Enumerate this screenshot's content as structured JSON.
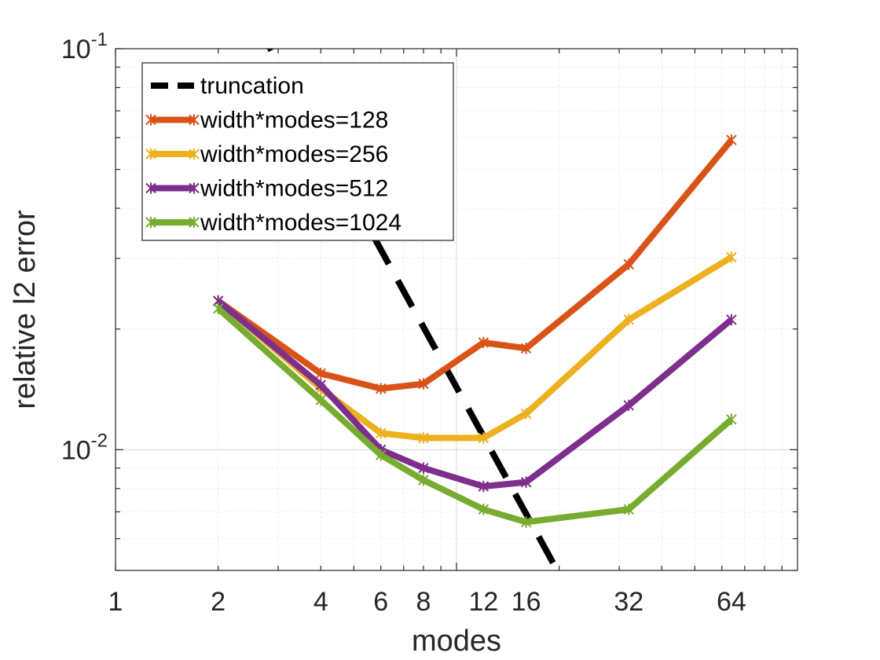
{
  "chart_data": {
    "type": "line",
    "xscale": "log",
    "yscale": "log",
    "xlabel": "modes",
    "ylabel": "relative l2 error",
    "xlim": [
      1,
      100
    ],
    "ylim": [
      0.005,
      0.1
    ],
    "grid": true,
    "x_ticks": [
      1,
      2,
      4,
      6,
      8,
      12,
      16,
      32,
      64
    ],
    "x_tick_labels": [
      "1",
      "2",
      "4",
      "6",
      "8",
      "12",
      "16",
      "32",
      "64"
    ],
    "y_tick_labels": [
      {
        "value": 0.1,
        "base": "10",
        "exp": "-1"
      },
      {
        "value": 0.01,
        "base": "10",
        "exp": "-2"
      }
    ],
    "legend_position": "top-left",
    "series": [
      {
        "name": "truncation",
        "color": "#000000",
        "style": "dashed",
        "marker": "none",
        "x": [
          2.6,
          20
        ],
        "y": [
          0.115,
          0.0049
        ]
      },
      {
        "name": "width*modes=128",
        "color": "#D95319",
        "style": "solid",
        "marker": "x",
        "x": [
          2,
          4,
          6,
          8,
          12,
          16,
          32,
          64
        ],
        "y": [
          0.0235,
          0.0155,
          0.0142,
          0.0146,
          0.0185,
          0.0179,
          0.029,
          0.0592
        ]
      },
      {
        "name": "width*modes=256",
        "color": "#EDB120",
        "style": "solid",
        "marker": "x",
        "x": [
          2,
          4,
          6,
          8,
          12,
          16,
          32,
          64
        ],
        "y": [
          0.0235,
          0.0142,
          0.011,
          0.0107,
          0.0107,
          0.0123,
          0.0211,
          0.0302
        ]
      },
      {
        "name": "width*modes=512",
        "color": "#7E2F8E",
        "style": "solid",
        "marker": "x",
        "x": [
          2,
          4,
          6,
          8,
          12,
          16,
          32,
          64
        ],
        "y": [
          0.0235,
          0.0145,
          0.01,
          0.009,
          0.0081,
          0.0083,
          0.0129,
          0.0211
        ]
      },
      {
        "name": "width*modes=1024",
        "color": "#77AC30",
        "style": "solid",
        "marker": "x",
        "x": [
          2,
          4,
          6,
          8,
          12,
          16,
          32,
          64
        ],
        "y": [
          0.0225,
          0.0133,
          0.0097,
          0.0084,
          0.0071,
          0.0066,
          0.0071,
          0.0119
        ]
      }
    ]
  }
}
